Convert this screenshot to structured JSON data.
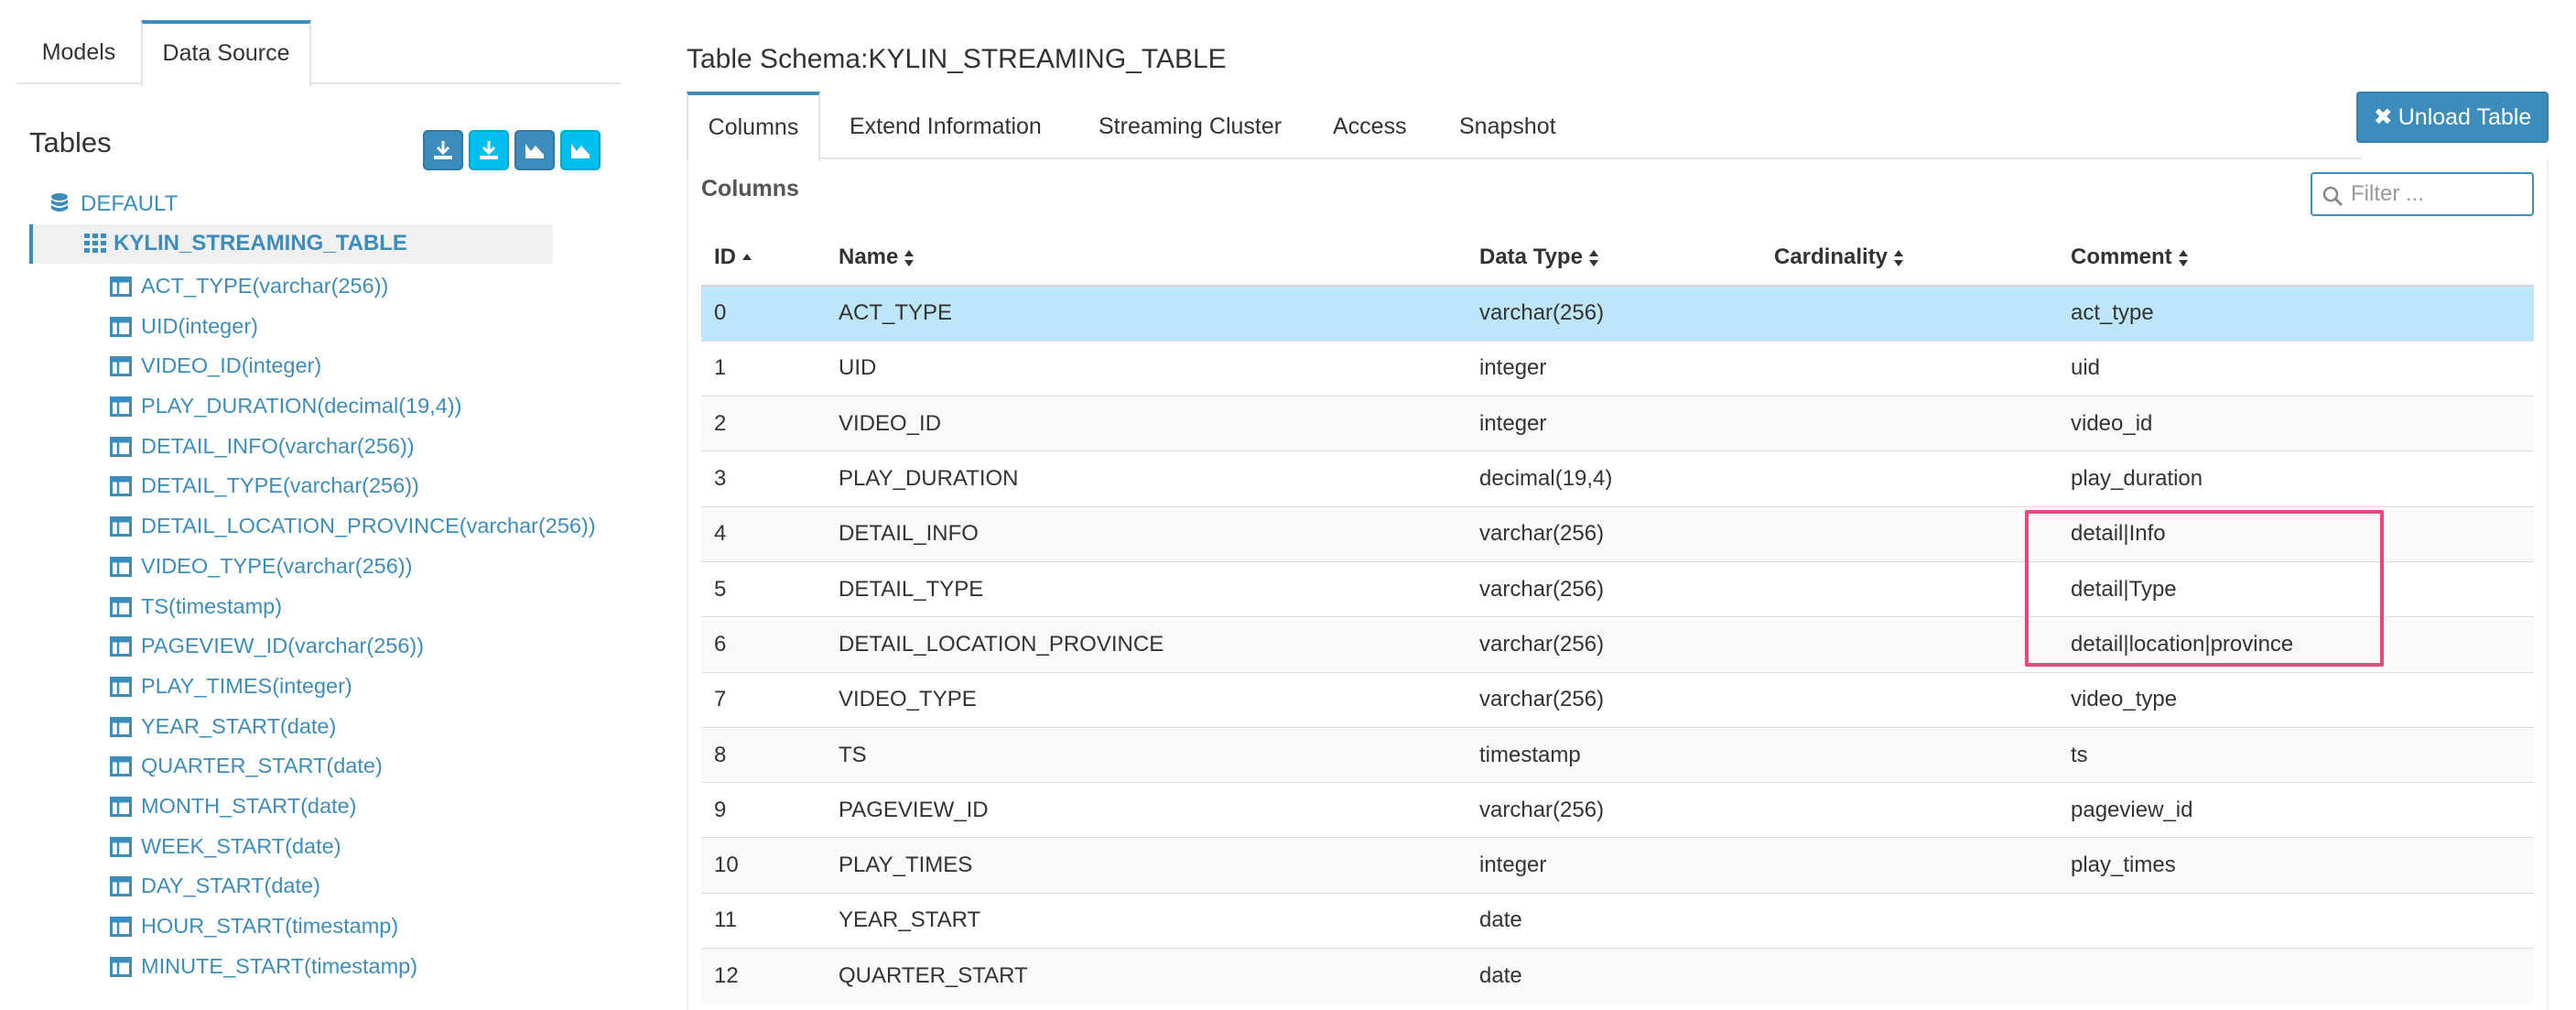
{
  "left_tabs": [
    {
      "label": "Models"
    },
    {
      "label": "Data Source"
    }
  ],
  "tables_title": "Tables",
  "tool_buttons": [
    "download-icon",
    "download-icon",
    "chart-icon",
    "chart-icon"
  ],
  "tree": {
    "database": "DEFAULT",
    "table": "KYLIN_STREAMING_TABLE",
    "columns": [
      "ACT_TYPE(varchar(256))",
      "UID(integer)",
      "VIDEO_ID(integer)",
      "PLAY_DURATION(decimal(19,4))",
      "DETAIL_INFO(varchar(256))",
      "DETAIL_TYPE(varchar(256))",
      "DETAIL_LOCATION_PROVINCE(varchar(256))",
      "VIDEO_TYPE(varchar(256))",
      "TS(timestamp)",
      "PAGEVIEW_ID(varchar(256))",
      "PLAY_TIMES(integer)",
      "YEAR_START(date)",
      "QUARTER_START(date)",
      "MONTH_START(date)",
      "WEEK_START(date)",
      "DAY_START(date)",
      "HOUR_START(timestamp)",
      "MINUTE_START(timestamp)"
    ]
  },
  "schema_title": "Table Schema:KYLIN_STREAMING_TABLE",
  "right_tabs": [
    {
      "label": "Columns"
    },
    {
      "label": "Extend Information"
    },
    {
      "label": "Streaming Cluster"
    },
    {
      "label": "Access"
    },
    {
      "label": "Snapshot"
    }
  ],
  "unload_label": "Unload Table",
  "columns_label": "Columns",
  "filter_placeholder": "Filter ...",
  "table": {
    "headers": [
      "ID",
      "Name",
      "Data Type",
      "Cardinality",
      "Comment"
    ],
    "rows": [
      [
        "0",
        "ACT_TYPE",
        "varchar(256)",
        "",
        "act_type"
      ],
      [
        "1",
        "UID",
        "integer",
        "",
        "uid"
      ],
      [
        "2",
        "VIDEO_ID",
        "integer",
        "",
        "video_id"
      ],
      [
        "3",
        "PLAY_DURATION",
        "decimal(19,4)",
        "",
        "play_duration"
      ],
      [
        "4",
        "DETAIL_INFO",
        "varchar(256)",
        "",
        "detail|Info"
      ],
      [
        "5",
        "DETAIL_TYPE",
        "varchar(256)",
        "",
        "detail|Type"
      ],
      [
        "6",
        "DETAIL_LOCATION_PROVINCE",
        "varchar(256)",
        "",
        "detail|location|province"
      ],
      [
        "7",
        "VIDEO_TYPE",
        "varchar(256)",
        "",
        "video_type"
      ],
      [
        "8",
        "TS",
        "timestamp",
        "",
        "ts"
      ],
      [
        "9",
        "PAGEVIEW_ID",
        "varchar(256)",
        "",
        "pageview_id"
      ],
      [
        "10",
        "PLAY_TIMES",
        "integer",
        "",
        "play_times"
      ],
      [
        "11",
        "YEAR_START",
        "date",
        "",
        ""
      ],
      [
        "12",
        "QUARTER_START",
        "date",
        "",
        ""
      ]
    ]
  },
  "colors": {
    "accent": "#3c8dbc",
    "selected_row": "#bde6fb",
    "highlight": "#e8487f"
  }
}
